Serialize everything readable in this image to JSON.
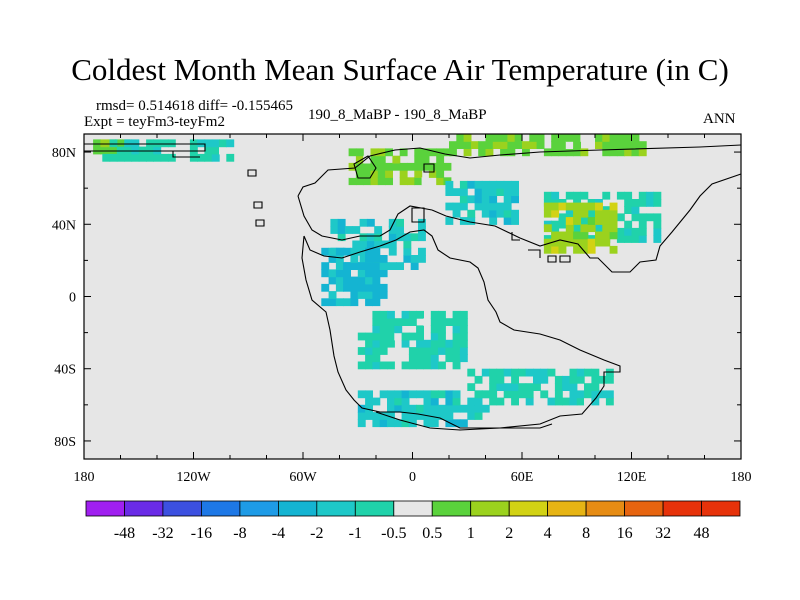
{
  "title": "Coldest Month Mean Surface Air Temperature (in C)",
  "stats_line": "rmsd= 0.514618 diff= -0.155465",
  "expt_line": "Expt = teyFm3-teyFm2",
  "case_line": "190_8_MaBP - 190_8_MaBP",
  "season": "ANN",
  "chart_data": {
    "type": "heatmap",
    "title": "Coldest Month Mean Surface Air Temperature (in C)",
    "x_ticks": [
      {
        "value": -180,
        "label": "180"
      },
      {
        "value": -120,
        "label": "120W"
      },
      {
        "value": -60,
        "label": "60W"
      },
      {
        "value": 0,
        "label": "0"
      },
      {
        "value": 60,
        "label": "60E"
      },
      {
        "value": 120,
        "label": "120E"
      },
      {
        "value": 180,
        "label": "180"
      }
    ],
    "y_ticks": [
      {
        "value": 80,
        "label": "80N"
      },
      {
        "value": 40,
        "label": "40N"
      },
      {
        "value": 0,
        "label": "0"
      },
      {
        "value": -40,
        "label": "40S"
      },
      {
        "value": -80,
        "label": "80S"
      }
    ],
    "xlim": [
      -180,
      180
    ],
    "ylim": [
      -90,
      90
    ],
    "colorbar": {
      "labels": [
        "-48",
        "-32",
        "-16",
        "-8",
        "-4",
        "-2",
        "-1",
        "-0.5",
        "0.5",
        "1",
        "2",
        "4",
        "8",
        "16",
        "32",
        "48"
      ],
      "colors": [
        "#a020f0",
        "#6a2be6",
        "#3c50e0",
        "#1e78e6",
        "#1e9be6",
        "#14b4d2",
        "#1ec8c8",
        "#20d2aa",
        "#e6e6e6",
        "#5ad23c",
        "#9bd21e",
        "#d2d214",
        "#e6b414",
        "#e68c14",
        "#e6640f",
        "#e6320a"
      ]
    },
    "regions": [
      {
        "name": "north-band-green",
        "lon": [
          -175,
          -155
        ],
        "lat": [
          79,
          87
        ],
        "value": 0.8
      },
      {
        "name": "north-band-teal",
        "lon": [
          -170,
          -100
        ],
        "lat": [
          75,
          86
        ],
        "value": -0.8
      },
      {
        "name": "arctic-green-1",
        "lon": [
          -35,
          20
        ],
        "lat": [
          62,
          80
        ],
        "value": 0.8
      },
      {
        "name": "arctic-green-2",
        "lon": [
          20,
          125
        ],
        "lat": [
          78,
          87
        ],
        "value": 0.8
      },
      {
        "name": "eurasia-cyan",
        "lon": [
          18,
          55
        ],
        "lat": [
          40,
          64
        ],
        "value": -1.5
      },
      {
        "name": "eastern-asia-cyan",
        "lon": [
          72,
          135
        ],
        "lat": [
          30,
          58
        ],
        "value": -0.8
      },
      {
        "name": "east-asia-yellow",
        "lon": [
          72,
          112
        ],
        "lat": [
          24,
          52
        ],
        "value": 1.5
      },
      {
        "name": "tethys-cyan",
        "lon": [
          -45,
          5
        ],
        "lat": [
          15,
          40
        ],
        "value": -1.5
      },
      {
        "name": "america-cyan",
        "lon": [
          -50,
          -15
        ],
        "lat": [
          -5,
          25
        ],
        "value": -2.5
      },
      {
        "name": "gondwana-cyan",
        "lon": [
          -30,
          30
        ],
        "lat": [
          -40,
          -10
        ],
        "value": -0.8
      },
      {
        "name": "antarctic-cyan",
        "lon": [
          -30,
          40
        ],
        "lat": [
          -72,
          -55
        ],
        "value": -1.5
      },
      {
        "name": "australia-cyan",
        "lon": [
          30,
          110
        ],
        "lat": [
          -60,
          -42
        ],
        "value": -0.8
      }
    ]
  }
}
